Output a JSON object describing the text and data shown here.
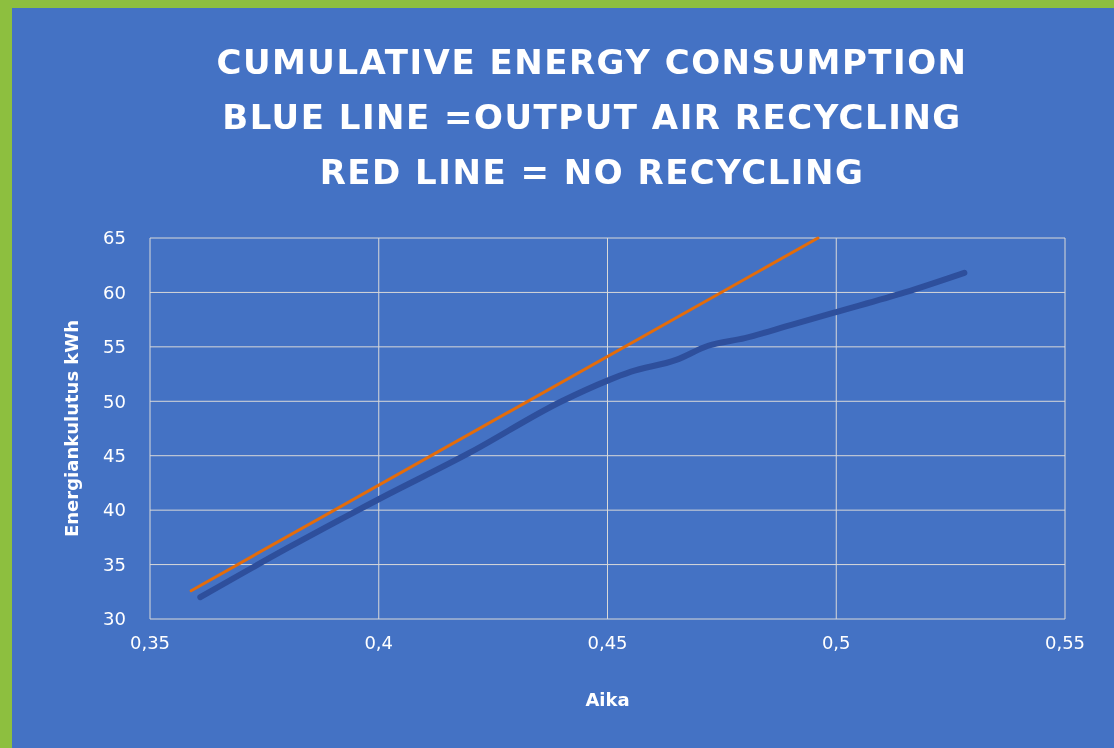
{
  "chart_data": {
    "type": "line",
    "title": "CUMULATIVE ENERGY CONSUMPTION\nBLUE LINE =OUTPUT AIR RECYCLING\nRED LINE = NO RECYCLING",
    "xlabel": "Aika",
    "ylabel": "Energiankulutus kWh",
    "xlim": [
      0.35,
      0.55
    ],
    "xticks": [
      {
        "value": 0.35,
        "label": "0,35"
      },
      {
        "value": 0.4,
        "label": "0,4"
      },
      {
        "value": 0.45,
        "label": "0,45"
      },
      {
        "value": 0.5,
        "label": "0,5"
      },
      {
        "value": 0.55,
        "label": "0,55"
      }
    ],
    "ylim": [
      30,
      65
    ],
    "yticks": [
      30,
      35,
      40,
      45,
      50,
      55,
      60,
      65
    ],
    "grid": true,
    "series": [
      {
        "color": "#2e4f9c",
        "x": [
          0.361,
          0.38,
          0.4,
          0.42,
          0.44,
          0.45,
          0.455,
          0.465,
          0.472,
          0.48,
          0.49,
          0.5,
          0.515,
          0.528
        ],
        "values": [
          32.0,
          36.5,
          41.0,
          45.3,
          50.0,
          51.9,
          52.7,
          53.8,
          55.1,
          55.8,
          57.0,
          58.2,
          60.0,
          61.8
        ]
      },
      {
        "color": "#e46c0a",
        "x": [
          0.359,
          0.496
        ],
        "values": [
          32.6,
          65
        ]
      }
    ]
  }
}
